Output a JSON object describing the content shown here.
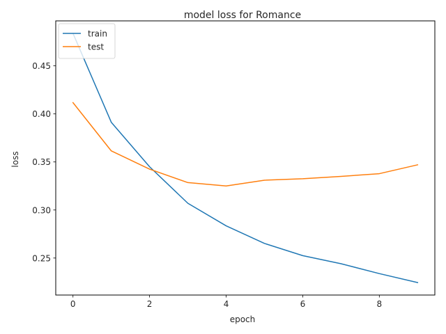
{
  "chart_data": {
    "type": "line",
    "title": "model loss for Romance",
    "xlabel": "epoch",
    "ylabel": "loss",
    "xlim": [
      -0.45,
      9.45
    ],
    "ylim": [
      0.2115,
      0.4968
    ],
    "xticks": [
      0,
      2,
      4,
      6,
      8
    ],
    "xtick_labels": [
      "0",
      "2",
      "4",
      "6",
      "8"
    ],
    "yticks": [
      0.25,
      0.3,
      0.35,
      0.4,
      0.45
    ],
    "ytick_labels": [
      "0.25",
      "0.30",
      "0.35",
      "0.40",
      "0.45"
    ],
    "grid": false,
    "legend_position": "top-left",
    "x": [
      0,
      1,
      2,
      3,
      4,
      5,
      6,
      7,
      8,
      9
    ],
    "series": [
      {
        "name": "train",
        "color": "#1f77b4",
        "values": [
          0.4838,
          0.3913,
          0.345,
          0.307,
          0.2835,
          0.2652,
          0.2525,
          0.2441,
          0.2338,
          0.2245
        ]
      },
      {
        "name": "test",
        "color": "#ff7f0e",
        "values": [
          0.4117,
          0.3615,
          0.3425,
          0.3285,
          0.325,
          0.331,
          0.3325,
          0.335,
          0.3378,
          0.347
        ]
      }
    ]
  }
}
